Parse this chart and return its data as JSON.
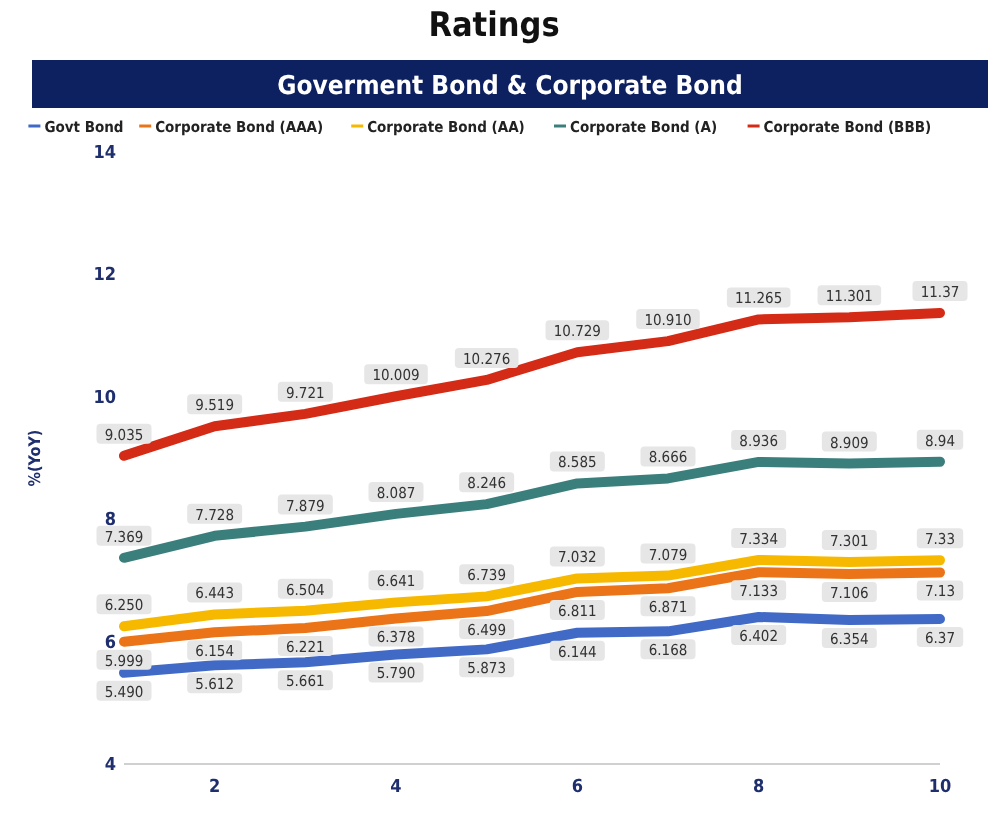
{
  "chart_data": {
    "type": "line",
    "title": "Goverment Bond & Corporate Bond",
    "annotations": [
      "Ratings"
    ],
    "ylabel": "%(YoY)",
    "x": [
      1,
      2,
      3,
      4,
      5,
      6,
      7,
      8,
      9,
      10
    ],
    "xlim": [
      1,
      10
    ],
    "xticks": [
      2,
      4,
      6,
      8,
      10
    ],
    "ylim": [
      4,
      14
    ],
    "yticks": [
      4,
      6,
      8,
      10,
      12,
      14
    ],
    "grid": false,
    "legend": "top",
    "marker": "none",
    "line_style": "solid",
    "series": [
      {
        "name": "Govt Bond",
        "color": "#4169c6",
        "values": [
          5.49,
          5.612,
          5.661,
          5.79,
          5.873,
          6.144,
          6.168,
          6.402,
          6.354,
          6.37
        ],
        "value_labels": [
          "5.490",
          "5.612",
          "5.661",
          "5.790",
          "5.873",
          "6.144",
          "6.168",
          "6.402",
          "6.354",
          "6.37"
        ]
      },
      {
        "name": "Corporate Bond (AAA)",
        "color": "#eb7418",
        "values": [
          5.999,
          6.154,
          6.221,
          6.378,
          6.499,
          6.811,
          6.871,
          7.133,
          7.106,
          7.13
        ],
        "value_labels": [
          "5.999",
          "6.154",
          "6.221",
          "6.378",
          "6.499",
          "6.811",
          "6.871",
          "7.133",
          "7.106",
          "7.13"
        ]
      },
      {
        "name": "Corporate Bond (AA)",
        "color": "#f7b900",
        "values": [
          6.25,
          6.443,
          6.504,
          6.641,
          6.739,
          7.032,
          7.079,
          7.334,
          7.301,
          7.33
        ],
        "value_labels": [
          "6.250",
          "6.443",
          "6.504",
          "6.641",
          "6.739",
          "7.032",
          "7.079",
          "7.334",
          "7.301",
          "7.33"
        ]
      },
      {
        "name": "Corporate Bond (A)",
        "color": "#3b7f7c",
        "values": [
          7.369,
          7.728,
          7.879,
          8.087,
          8.246,
          8.585,
          8.666,
          8.936,
          8.909,
          8.94
        ],
        "value_labels": [
          "7.369",
          "7.728",
          "7.879",
          "8.087",
          "8.246",
          "8.585",
          "8.666",
          "8.936",
          "8.909",
          "8.94"
        ]
      },
      {
        "name": "Corporate Bond (BBB)",
        "color": "#d42b17",
        "values": [
          9.035,
          9.519,
          9.721,
          10.009,
          10.276,
          10.729,
          10.91,
          11.265,
          11.301,
          11.37
        ],
        "value_labels": [
          "9.035",
          "9.519",
          "9.721",
          "10.009",
          "10.276",
          "10.729",
          "10.910",
          "11.265",
          "11.301",
          "11.37"
        ]
      }
    ]
  }
}
